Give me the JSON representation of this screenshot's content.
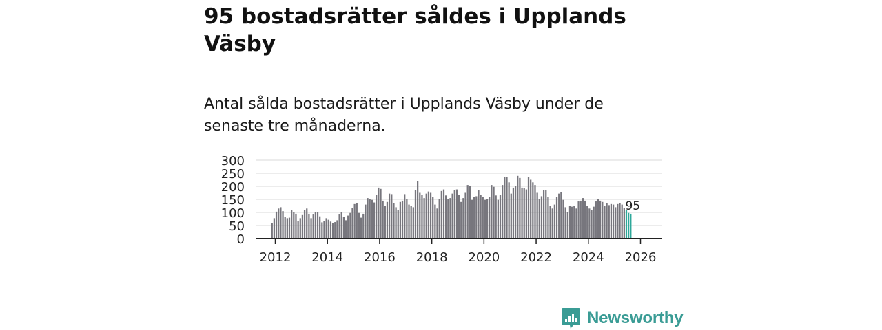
{
  "title": "95 bostadsrätter såldes i Upplands Väsby",
  "subtitle": "Antal sålda bostadsrätter i Upplands Väsby under de senaste tre månaderna.",
  "colors": {
    "bar": "#77767d",
    "highlight": "#2ea89a",
    "grid": "#d9d9d9",
    "axis": "#222222",
    "brand": "#3a9c95"
  },
  "brand": {
    "name": "Newsworthy"
  },
  "chart_data": {
    "type": "bar",
    "title": "95 bostadsrätter såldes i Upplands Väsby",
    "xlabel": "",
    "ylabel": "",
    "ylim": [
      0,
      300
    ],
    "y_ticks": [
      0,
      50,
      100,
      150,
      200,
      250,
      300
    ],
    "y_tick_labels": [
      "0",
      "50",
      "100",
      "150",
      "200",
      "250",
      "300"
    ],
    "x_ticks": [
      2012,
      2014,
      2016,
      2018,
      2020,
      2022,
      2024,
      2026
    ],
    "x_tick_labels": [
      "2012",
      "2014",
      "2016",
      "2018",
      "2020",
      "2022",
      "2024",
      "2026"
    ],
    "grid": true,
    "start": "2011-11",
    "interval": "month",
    "series": [
      {
        "name": "Antal sålda bostadsrätter",
        "values": [
          58,
          78,
          103,
          115,
          120,
          105,
          82,
          78,
          80,
          110,
          102,
          95,
          68,
          78,
          90,
          108,
          115,
          95,
          78,
          92,
          100,
          100,
          85,
          62,
          68,
          78,
          72,
          65,
          58,
          63,
          70,
          92,
          100,
          82,
          70,
          88,
          98,
          118,
          132,
          135,
          98,
          80,
          95,
          130,
          155,
          150,
          148,
          138,
          168,
          195,
          190,
          145,
          125,
          140,
          172,
          170,
          135,
          120,
          110,
          140,
          145,
          170,
          150,
          130,
          125,
          120,
          185,
          220,
          175,
          168,
          155,
          172,
          180,
          175,
          160,
          130,
          115,
          150,
          182,
          188,
          165,
          150,
          155,
          172,
          185,
          188,
          168,
          140,
          155,
          175,
          205,
          200,
          148,
          158,
          162,
          185,
          168,
          160,
          148,
          150,
          160,
          205,
          198,
          165,
          148,
          168,
          205,
          235,
          235,
          215,
          172,
          195,
          200,
          240,
          232,
          195,
          192,
          188,
          235,
          225,
          215,
          205,
          175,
          150,
          162,
          185,
          185,
          160,
          125,
          115,
          130,
          160,
          172,
          178,
          148,
          120,
          102,
          125,
          122,
          125,
          115,
          142,
          145,
          155,
          145,
          125,
          115,
          110,
          122,
          142,
          152,
          145,
          140,
          125,
          135,
          128,
          132,
          130,
          120,
          132,
          135,
          130,
          118,
          110,
          98,
          95
        ],
        "highlight_last": 3,
        "last_label": "95"
      }
    ]
  }
}
